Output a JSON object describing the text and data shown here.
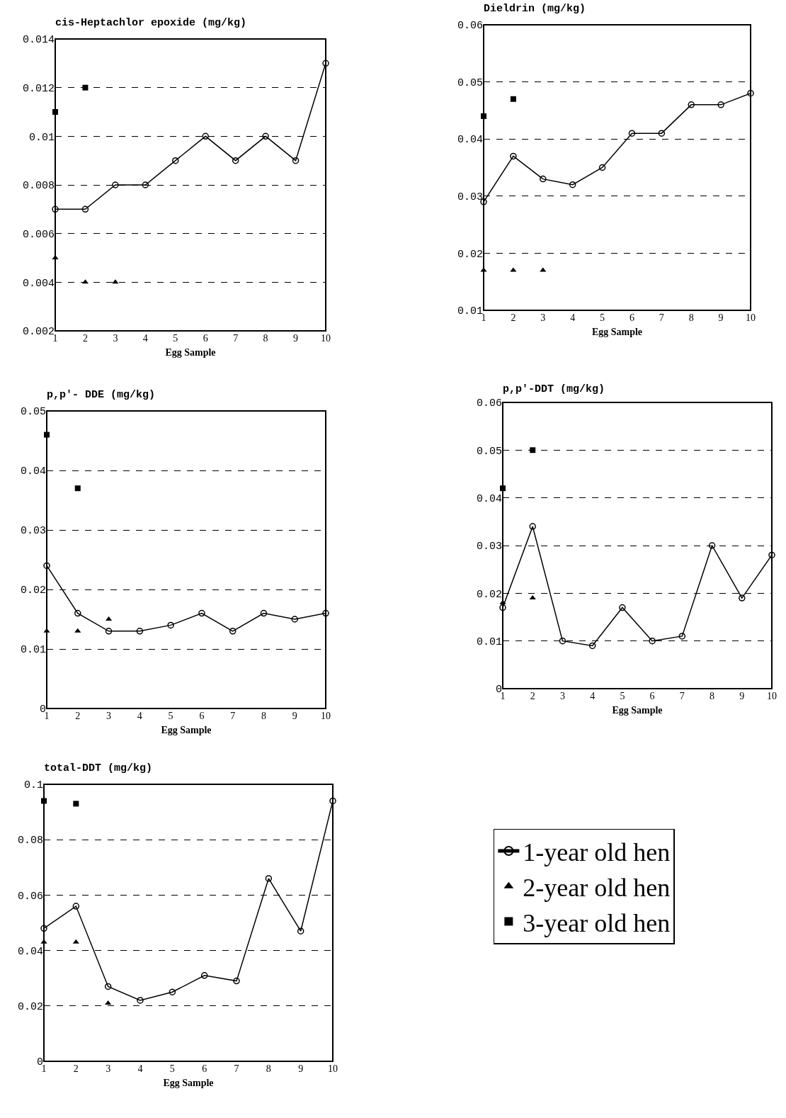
{
  "chart_data": [
    {
      "type": "line",
      "title": "cis-Heptachlor epoxide (mg/kg)",
      "xlabel": "Egg Sample",
      "x": [
        1,
        2,
        3,
        4,
        5,
        6,
        7,
        8,
        9,
        10
      ],
      "xlim": [
        1,
        10
      ],
      "xticks": [
        1,
        2,
        3,
        4,
        5,
        6,
        7,
        8,
        9,
        10
      ],
      "ylim": [
        0.002,
        0.014
      ],
      "yticks": [
        0.002,
        0.004,
        0.006,
        0.008,
        0.01,
        0.012,
        0.014
      ],
      "grid": "y",
      "legend": false,
      "series": [
        {
          "type": "line",
          "marker": "circle",
          "color": "#000000",
          "values": [
            0.007,
            0.007,
            0.008,
            0.008,
            0.009,
            0.01,
            0.009,
            0.01,
            0.009,
            0.013
          ]
        },
        {
          "type": "scatter",
          "marker": "triangle",
          "color": "#000000",
          "x": [
            1,
            2,
            3
          ],
          "values": [
            0.005,
            0.004,
            0.004
          ]
        },
        {
          "type": "scatter",
          "marker": "square",
          "color": "#000000",
          "x": [
            1,
            2
          ],
          "values": [
            0.011,
            0.012
          ]
        }
      ]
    },
    {
      "type": "line",
      "title": "Dieldrin (mg/kg)",
      "xlabel": "Egg Sample",
      "x": [
        1,
        2,
        3,
        4,
        5,
        6,
        7,
        8,
        9,
        10
      ],
      "xlim": [
        1,
        10
      ],
      "xticks": [
        1,
        2,
        3,
        4,
        5,
        6,
        7,
        8,
        9,
        10
      ],
      "ylim": [
        0.01,
        0.06
      ],
      "yticks": [
        0.01,
        0.02,
        0.03,
        0.04,
        0.05,
        0.06
      ],
      "grid": "y",
      "legend": false,
      "series": [
        {
          "type": "line",
          "marker": "circle",
          "color": "#000000",
          "values": [
            0.029,
            0.037,
            0.033,
            0.032,
            0.035,
            0.041,
            0.041,
            0.046,
            0.046,
            0.048
          ]
        },
        {
          "type": "scatter",
          "marker": "triangle",
          "color": "#000000",
          "x": [
            1,
            2,
            3
          ],
          "values": [
            0.017,
            0.017,
            0.017
          ]
        },
        {
          "type": "scatter",
          "marker": "square",
          "color": "#000000",
          "x": [
            1,
            2
          ],
          "values": [
            0.044,
            0.047
          ]
        }
      ]
    },
    {
      "type": "line",
      "title": "p,p'- DDE (mg/kg)",
      "xlabel": "Egg Sample",
      "x": [
        1,
        2,
        3,
        4,
        5,
        6,
        7,
        8,
        9,
        10
      ],
      "xlim": [
        1,
        10
      ],
      "xticks": [
        1,
        2,
        3,
        4,
        5,
        6,
        7,
        8,
        9,
        10
      ],
      "ylim": [
        0,
        0.05
      ],
      "yticks": [
        0,
        0.01,
        0.02,
        0.03,
        0.04,
        0.05
      ],
      "grid": "y",
      "legend": false,
      "series": [
        {
          "type": "line",
          "marker": "circle",
          "color": "#000000",
          "values": [
            0.024,
            0.016,
            0.013,
            0.013,
            0.014,
            0.016,
            0.013,
            0.016,
            0.015,
            0.016
          ]
        },
        {
          "type": "scatter",
          "marker": "triangle",
          "color": "#000000",
          "x": [
            1,
            2,
            3
          ],
          "values": [
            0.013,
            0.013,
            0.015
          ]
        },
        {
          "type": "scatter",
          "marker": "square",
          "color": "#000000",
          "x": [
            1,
            2
          ],
          "values": [
            0.046,
            0.037
          ]
        }
      ]
    },
    {
      "type": "line",
      "title": "p,p'-DDT (mg/kg)",
      "xlabel": "Egg Sample",
      "x": [
        1,
        2,
        3,
        4,
        5,
        6,
        7,
        8,
        9,
        10
      ],
      "xlim": [
        1,
        10
      ],
      "xticks": [
        1,
        2,
        3,
        4,
        5,
        6,
        7,
        8,
        9,
        10
      ],
      "ylim": [
        0,
        0.06
      ],
      "yticks": [
        0,
        0.01,
        0.02,
        0.03,
        0.04,
        0.05,
        0.06
      ],
      "grid": "y",
      "legend": false,
      "series": [
        {
          "type": "line",
          "marker": "circle",
          "color": "#000000",
          "values": [
            0.017,
            0.034,
            0.01,
            0.009,
            0.017,
            0.01,
            0.011,
            0.03,
            0.019,
            0.028
          ]
        },
        {
          "type": "scatter",
          "marker": "triangle",
          "color": "#000000",
          "x": [
            1,
            2
          ],
          "values": [
            0.018,
            0.019
          ]
        },
        {
          "type": "scatter",
          "marker": "square",
          "color": "#000000",
          "x": [
            1,
            2
          ],
          "values": [
            0.042,
            0.05
          ]
        }
      ]
    },
    {
      "type": "line",
      "title": "total-DDT (mg/kg)",
      "xlabel": "Egg Sample",
      "x": [
        1,
        2,
        3,
        4,
        5,
        6,
        7,
        8,
        9,
        10
      ],
      "xlim": [
        1,
        10
      ],
      "xticks": [
        1,
        2,
        3,
        4,
        5,
        6,
        7,
        8,
        9,
        10
      ],
      "ylim": [
        0,
        0.1
      ],
      "yticks": [
        0,
        0.02,
        0.04,
        0.06,
        0.08,
        0.1
      ],
      "grid": "y",
      "legend": "right",
      "series": [
        {
          "name": "1-year old hen",
          "type": "line",
          "marker": "circle",
          "color": "#000000",
          "values": [
            0.048,
            0.056,
            0.027,
            0.022,
            0.025,
            0.031,
            0.029,
            0.066,
            0.047,
            0.094
          ]
        },
        {
          "name": "2-year old hen",
          "type": "scatter",
          "marker": "triangle",
          "color": "#000000",
          "x": [
            1,
            2,
            3
          ],
          "values": [
            0.043,
            0.043,
            0.021
          ]
        },
        {
          "name": "3-year old hen",
          "type": "scatter",
          "marker": "square",
          "color": "#000000",
          "x": [
            1,
            2
          ],
          "values": [
            0.094,
            0.093
          ]
        }
      ]
    }
  ]
}
